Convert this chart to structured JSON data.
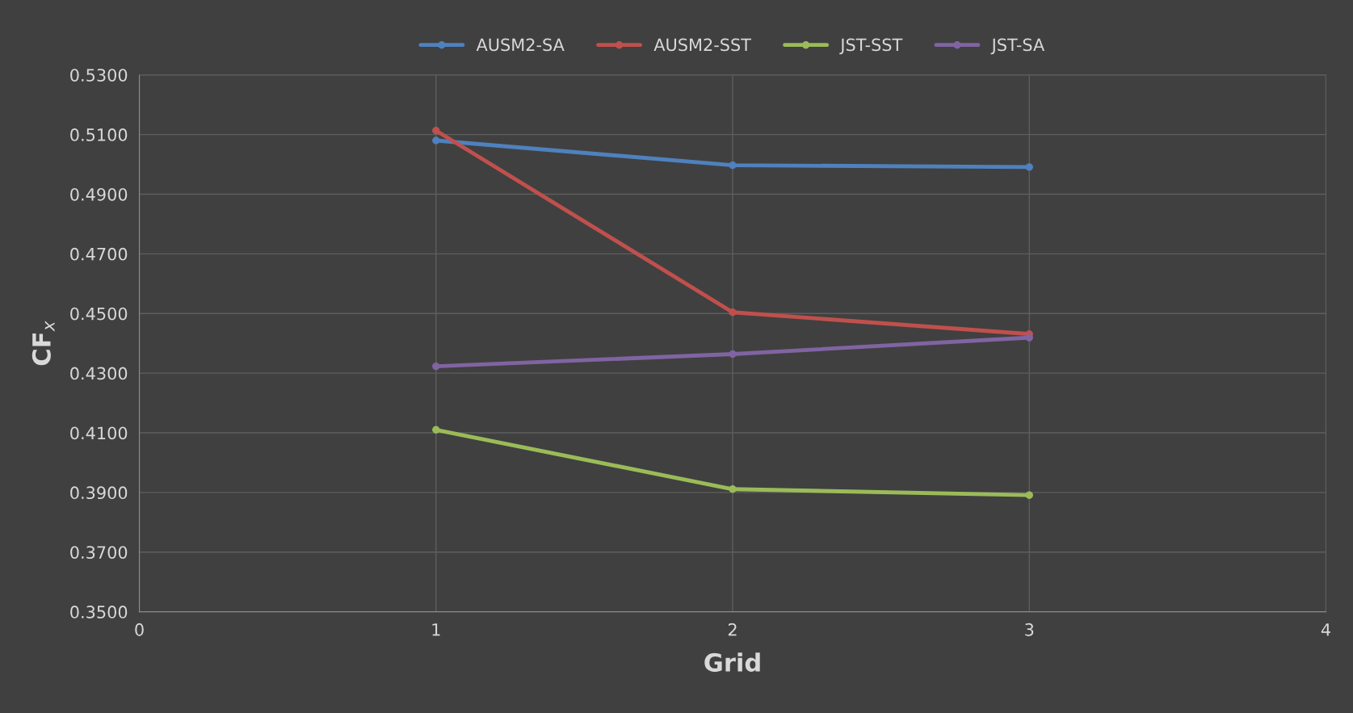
{
  "chart_data": {
    "type": "line",
    "xlabel": "Grid",
    "ylabel": "CF$_{x}$",
    "x": [
      1,
      2,
      3
    ],
    "series": [
      {
        "name": "AUSM2-SA",
        "color": "#4f81bd",
        "values": [
          0.508,
          0.4997,
          0.4991
        ]
      },
      {
        "name": "AUSM2-SST",
        "color": "#c0504d",
        "values": [
          0.5113,
          0.4504,
          0.4431
        ]
      },
      {
        "name": "JST-SST",
        "color": "#9bbb59",
        "values": [
          0.411,
          0.3911,
          0.3891
        ]
      },
      {
        "name": "JST-SA",
        "color": "#8064a2",
        "values": [
          0.4323,
          0.4364,
          0.4419
        ]
      }
    ],
    "xlim": [
      0,
      4
    ],
    "xticks": [
      0,
      1,
      2,
      3,
      4
    ],
    "ylim": [
      0.35,
      0.53
    ],
    "yticks": [
      {
        "value": 0.35,
        "label": "0.3500"
      },
      {
        "value": 0.37,
        "label": "0.3700"
      },
      {
        "value": 0.39,
        "label": "0.3900"
      },
      {
        "value": 0.41,
        "label": "0.4100"
      },
      {
        "value": 0.43,
        "label": "0.4300"
      },
      {
        "value": 0.45,
        "label": "0.4500"
      },
      {
        "value": 0.47,
        "label": "0.4700"
      },
      {
        "value": 0.49,
        "label": "0.4900"
      },
      {
        "value": 0.51,
        "label": "0.5100"
      },
      {
        "value": 0.53,
        "label": "0.5300"
      }
    ],
    "grid": true,
    "legend": "top",
    "marker": "circle",
    "line_style": "solid"
  }
}
